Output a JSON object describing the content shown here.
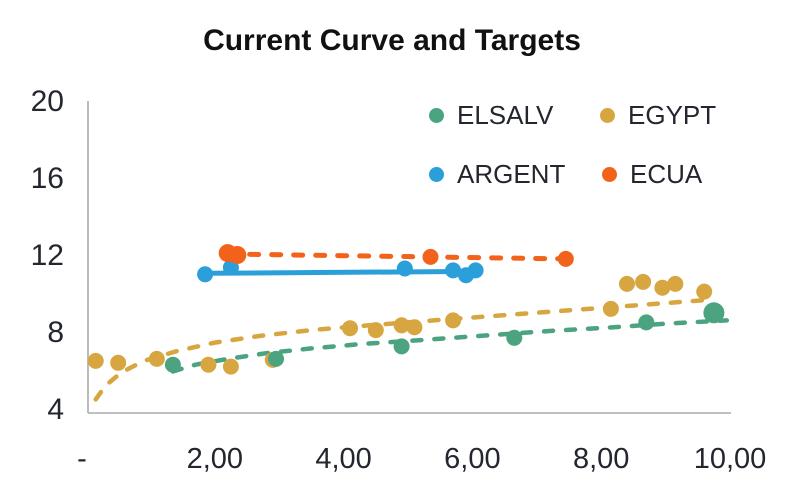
{
  "chart_data": {
    "type": "scatter",
    "title": "Current Curve and Targets",
    "xlabel": "",
    "ylabel": "",
    "xlim": [
      0,
      10
    ],
    "ylim": [
      4,
      20
    ],
    "grid": false,
    "legend_position": "top-right-inside",
    "x_ticks": {
      "values": [
        0,
        2,
        4,
        6,
        8,
        10
      ],
      "labels": [
        "-",
        "2,00",
        "4,00",
        "6,00",
        "8,00",
        "10,00"
      ]
    },
    "y_ticks": {
      "values": [
        20,
        16,
        12,
        8,
        4
      ],
      "labels": [
        "20",
        "16",
        "12",
        "8",
        "4"
      ]
    },
    "axis_color": "#acacac",
    "text_color": "#23262e",
    "series": [
      {
        "name": "EGYPT",
        "color": "#d8a640",
        "marker": "circle",
        "points": [
          [
            0.15,
            6.5
          ],
          [
            0.5,
            6.4
          ],
          [
            1.1,
            6.6
          ],
          [
            1.9,
            6.3
          ],
          [
            2.25,
            6.2
          ],
          [
            2.9,
            6.55
          ],
          [
            4.1,
            8.2
          ],
          [
            4.5,
            8.1
          ],
          [
            4.9,
            8.35
          ],
          [
            5.1,
            8.25
          ],
          [
            5.7,
            8.6
          ],
          [
            8.15,
            9.2
          ],
          [
            8.4,
            10.5
          ],
          [
            8.65,
            10.6
          ],
          [
            8.95,
            10.3
          ],
          [
            9.15,
            10.5
          ],
          [
            9.6,
            10.1
          ]
        ],
        "point_sizes": [
          8,
          8,
          8,
          8,
          8,
          8,
          8,
          8,
          8,
          8,
          8,
          8,
          8,
          8,
          8,
          8,
          8
        ],
        "line": {
          "style": "dashed",
          "width": 4.5,
          "points": [
            [
              0.15,
              4.5
            ],
            [
              0.3,
              5.2
            ],
            [
              0.55,
              5.9
            ],
            [
              0.9,
              6.5
            ],
            [
              1.4,
              7.0
            ],
            [
              2.0,
              7.45
            ],
            [
              2.7,
              7.8
            ],
            [
              3.5,
              8.1
            ],
            [
              4.4,
              8.35
            ],
            [
              5.4,
              8.6
            ],
            [
              6.4,
              8.85
            ],
            [
              7.4,
              9.1
            ],
            [
              8.4,
              9.35
            ],
            [
              9.6,
              9.65
            ]
          ]
        }
      },
      {
        "name": "ELSALV",
        "color": "#4ba47f",
        "marker": "circle",
        "points": [
          [
            1.35,
            6.3
          ],
          [
            2.95,
            6.6
          ],
          [
            4.9,
            7.25
          ],
          [
            6.65,
            7.7
          ],
          [
            8.7,
            8.5
          ],
          [
            9.75,
            9.0
          ]
        ],
        "point_sizes": [
          8,
          8,
          8,
          8,
          8,
          10.5
        ],
        "line": {
          "style": "dashed",
          "width": 4.5,
          "points": [
            [
              1.35,
              5.95
            ],
            [
              1.7,
              6.3
            ],
            [
              2.2,
              6.6
            ],
            [
              2.8,
              6.9
            ],
            [
              3.5,
              7.15
            ],
            [
              4.3,
              7.38
            ],
            [
              5.2,
              7.58
            ],
            [
              6.2,
              7.82
            ],
            [
              7.2,
              8.05
            ],
            [
              8.2,
              8.25
            ],
            [
              9.1,
              8.45
            ],
            [
              9.95,
              8.6
            ]
          ]
        }
      },
      {
        "name": "ARGENT",
        "color": "#2b9fd9",
        "marker": "circle",
        "points": [
          [
            1.85,
            11.0
          ],
          [
            2.25,
            11.35
          ],
          [
            4.95,
            11.3
          ],
          [
            5.7,
            11.2
          ],
          [
            5.9,
            10.95
          ],
          [
            6.05,
            11.2
          ]
        ],
        "point_sizes": [
          8,
          8,
          8,
          8,
          8,
          8
        ],
        "line": {
          "style": "solid",
          "width": 5,
          "points": [
            [
              1.85,
              11.05
            ],
            [
              6.05,
              11.15
            ]
          ]
        }
      },
      {
        "name": "ECUA",
        "color": "#f2621b",
        "marker": "circle",
        "points": [
          [
            2.2,
            12.1
          ],
          [
            2.35,
            12.0
          ],
          [
            5.35,
            11.9
          ],
          [
            7.45,
            11.8
          ]
        ],
        "point_sizes": [
          9,
          9,
          8,
          8
        ],
        "line": {
          "style": "dashed",
          "width": 5,
          "points": [
            [
              2.2,
              12.05
            ],
            [
              7.45,
              11.8
            ]
          ]
        }
      }
    ],
    "legend": [
      "ELSALV",
      "EGYPT",
      "ARGENT",
      "ECUA"
    ]
  }
}
